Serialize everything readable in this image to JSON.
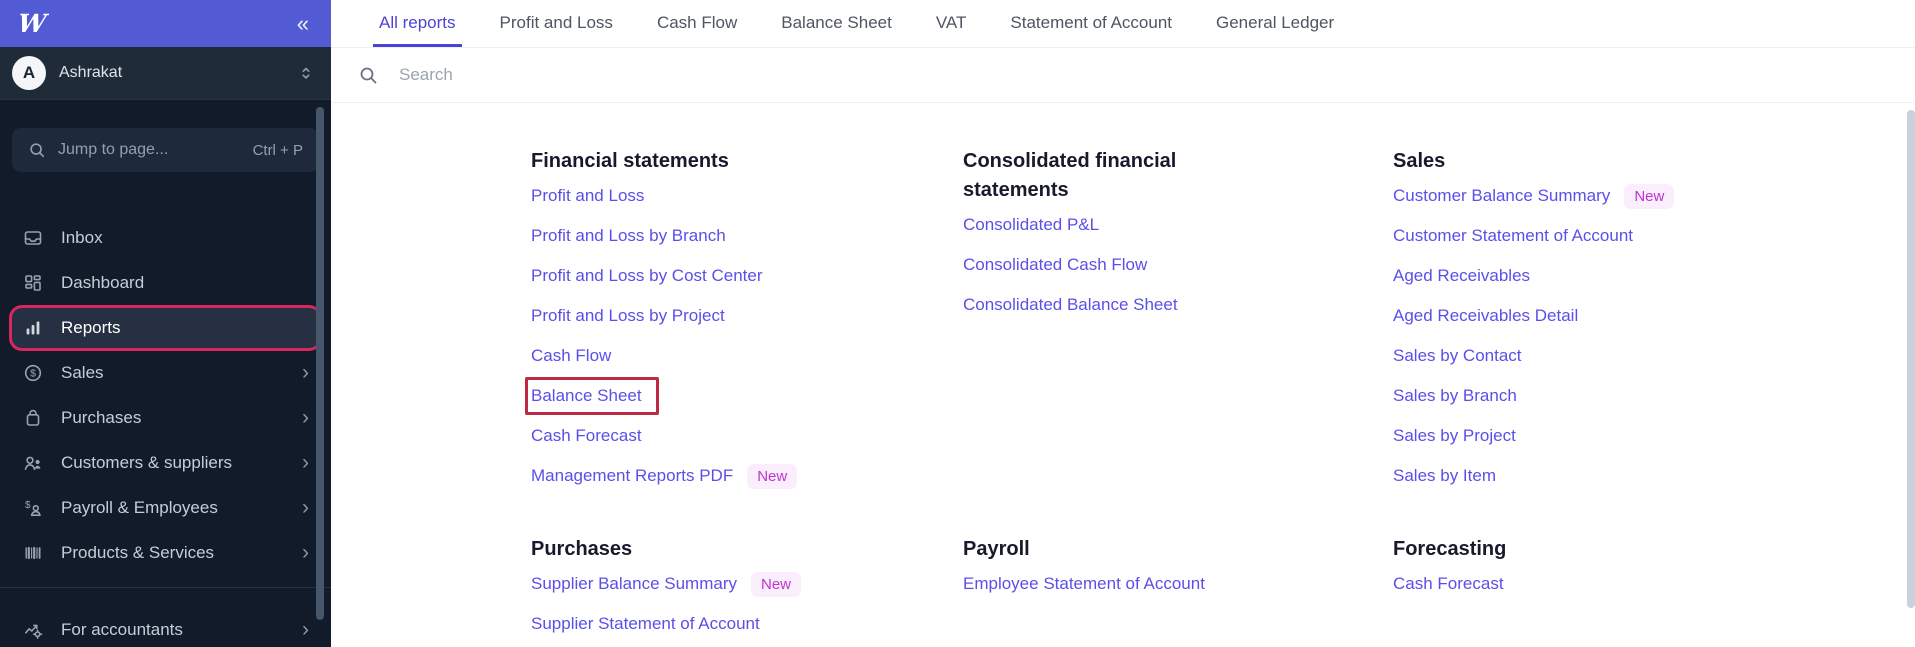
{
  "colors": {
    "accent": "#4a43d9",
    "link": "#5b4fe9",
    "sidebar_bg": "#111b2a",
    "header_purple": "#525ad4",
    "annotation_sidebar_box": "#d8265f",
    "annotation_link_box": "#bc2b45",
    "badge_bg": "#faedfc",
    "badge_text": "#be35ce"
  },
  "sidebar": {
    "logo_glyph": "W",
    "collapse_glyph": "«",
    "user": {
      "initial": "A",
      "name": "Ashrakat",
      "dropdown_icon": "chevron-up-down-icon"
    },
    "jump_search": {
      "icon": "search-icon",
      "placeholder": "Jump to page...",
      "shortcut": "Ctrl + P"
    },
    "items": [
      {
        "label": "Inbox",
        "icon": "inbox-icon",
        "expandable": false,
        "selected": false
      },
      {
        "label": "Dashboard",
        "icon": "dashboard-icon",
        "expandable": false,
        "selected": false
      },
      {
        "label": "Reports",
        "icon": "reports-icon",
        "expandable": false,
        "selected": true,
        "annotated": true
      },
      {
        "label": "Sales",
        "icon": "sales-icon",
        "expandable": true,
        "selected": false
      },
      {
        "label": "Purchases",
        "icon": "purchases-icon",
        "expandable": true,
        "selected": false
      },
      {
        "label": "Customers & suppliers",
        "icon": "customers-icon",
        "expandable": true,
        "selected": false
      },
      {
        "label": "Payroll & Employees",
        "icon": "payroll-icon",
        "expandable": true,
        "selected": false
      },
      {
        "label": "Products & Services",
        "icon": "products-icon",
        "expandable": true,
        "selected": false
      }
    ],
    "footer_items": [
      {
        "label": "For accountants",
        "icon": "accountants-icon",
        "expandable": true,
        "selected": false
      }
    ]
  },
  "main": {
    "tabs": [
      {
        "label": "All reports",
        "active": true
      },
      {
        "label": "Profit and Loss",
        "active": false
      },
      {
        "label": "Cash Flow",
        "active": false
      },
      {
        "label": "Balance Sheet",
        "active": false
      },
      {
        "label": "VAT",
        "active": false
      },
      {
        "label": "Statement of Account",
        "active": false
      },
      {
        "label": "General Ledger",
        "active": false
      }
    ],
    "search": {
      "icon": "search-icon",
      "placeholder": "Search"
    },
    "columns": [
      {
        "sections": [
          {
            "title": "Financial statements",
            "links": [
              {
                "label": "Profit and Loss"
              },
              {
                "label": "Profit and Loss by Branch"
              },
              {
                "label": "Profit and Loss by Cost Center"
              },
              {
                "label": "Profit and Loss by Project"
              },
              {
                "label": "Cash Flow"
              },
              {
                "label": "Balance Sheet",
                "annotated": true
              },
              {
                "label": "Cash Forecast"
              },
              {
                "label": "Management Reports PDF",
                "badge": "New"
              }
            ]
          },
          {
            "title": "Purchases",
            "links": [
              {
                "label": "Supplier Balance Summary",
                "badge": "New"
              },
              {
                "label": "Supplier Statement of Account"
              }
            ]
          }
        ]
      },
      {
        "sections": [
          {
            "title": "Consolidated financial statements",
            "links": [
              {
                "label": "Consolidated P&L"
              },
              {
                "label": "Consolidated Cash Flow"
              },
              {
                "label": "Consolidated Balance Sheet"
              }
            ]
          },
          {
            "title": "Payroll",
            "links": [
              {
                "label": "Employee Statement of Account"
              }
            ]
          }
        ]
      },
      {
        "sections": [
          {
            "title": "Sales",
            "links": [
              {
                "label": "Customer Balance Summary",
                "badge": "New"
              },
              {
                "label": "Customer Statement of Account"
              },
              {
                "label": "Aged Receivables"
              },
              {
                "label": "Aged Receivables Detail"
              },
              {
                "label": "Sales by Contact"
              },
              {
                "label": "Sales by Branch"
              },
              {
                "label": "Sales by Project"
              },
              {
                "label": "Sales by Item"
              }
            ]
          },
          {
            "title": "Forecasting",
            "links": [
              {
                "label": "Cash Forecast"
              }
            ]
          }
        ]
      }
    ]
  }
}
